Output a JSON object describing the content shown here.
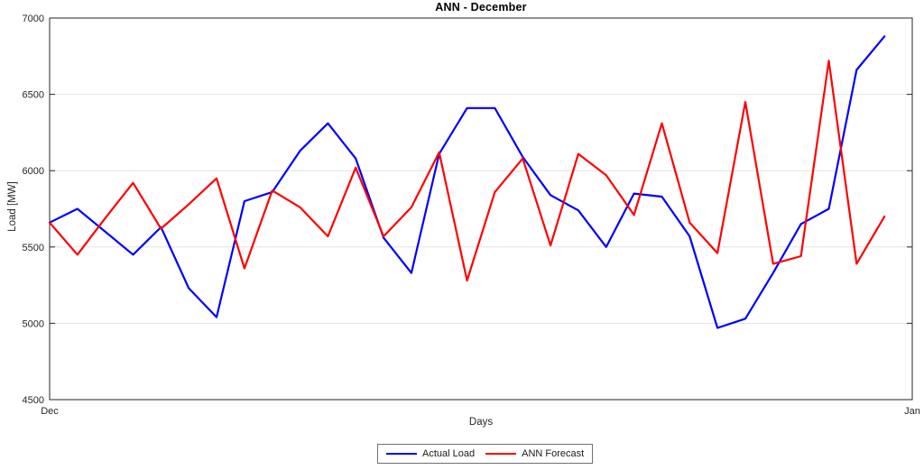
{
  "figure": {
    "background": "#ffffff",
    "axis_color": "#262626",
    "grid_color": "#e3e3e3",
    "tick_label_color": "#262626"
  },
  "chart_data": {
    "type": "line",
    "title": "ANN - December",
    "xlabel": "Days",
    "ylabel": "Load [MW]",
    "x": [
      1,
      2,
      3,
      4,
      5,
      6,
      7,
      8,
      9,
      10,
      11,
      12,
      13,
      14,
      15,
      16,
      17,
      18,
      19,
      20,
      21,
      22,
      23,
      24,
      25,
      26,
      27,
      28,
      29,
      30,
      31
    ],
    "series": [
      {
        "name": "Actual Load",
        "color": "#0000ff",
        "values": [
          5660,
          5750,
          5600,
          5450,
          5630,
          5230,
          5040,
          5800,
          5860,
          6130,
          6310,
          6080,
          5560,
          5330,
          6110,
          6410,
          6410,
          6090,
          5840,
          5740,
          5500,
          5850,
          5830,
          5570,
          4970,
          5030,
          5330,
          5650,
          5750,
          6660,
          6880
        ]
      },
      {
        "name": "ANN Forecast",
        "color": "#ff0000",
        "values": [
          5660,
          5450,
          5690,
          5920,
          5620,
          5780,
          5950,
          5360,
          5870,
          5760,
          5570,
          6020,
          5570,
          5760,
          6120,
          5280,
          5860,
          6080,
          5510,
          6110,
          5970,
          5710,
          6310,
          5660,
          5460,
          6450,
          5390,
          5440,
          6720,
          5390,
          5700
        ]
      }
    ],
    "ylim": [
      4500,
      7000
    ],
    "yticks": [
      4500,
      5000,
      5500,
      6000,
      6500,
      7000
    ],
    "xtick_labels": [
      "Dec",
      "Jan"
    ],
    "grid": "horizontal-only",
    "legend_position": "below-axis-center",
    "line_width": 2.2
  },
  "legend": {
    "items": [
      {
        "label": "Actual Load",
        "color": "#0000ff"
      },
      {
        "label": "ANN Forecast",
        "color": "#ff0000"
      }
    ]
  }
}
